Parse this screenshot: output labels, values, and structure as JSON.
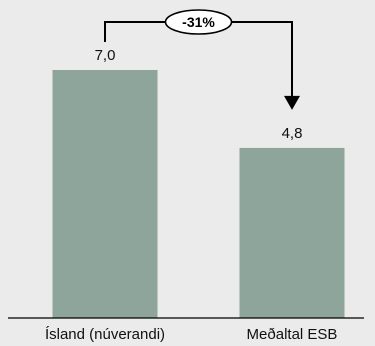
{
  "chart_data": {
    "type": "bar",
    "categories": [
      "Ísland (núverandi)",
      "Meðaltal ESB"
    ],
    "values": [
      7.0,
      4.8
    ],
    "value_labels": [
      "7,0",
      "4,8"
    ],
    "ylim": [
      0,
      7.5
    ],
    "title": "",
    "xlabel": "",
    "ylabel": "",
    "grid": false,
    "annotation": {
      "text": "-31%",
      "from_category": "Ísland (núverandi)",
      "to_category": "Meðaltal ESB"
    },
    "colors": {
      "bar": "#8ea59b",
      "background": "#ebebeb",
      "axis": "#000000"
    }
  }
}
